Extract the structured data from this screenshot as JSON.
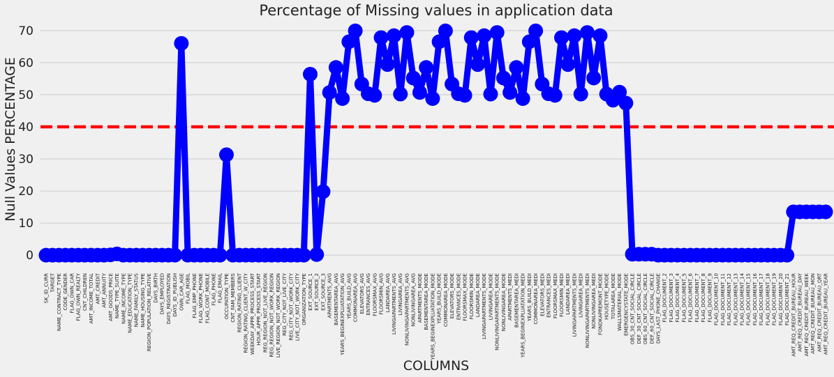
{
  "chart_data": {
    "type": "line",
    "title": "Percentage of Missing values in application data",
    "xlabel": "COLUMNS",
    "ylabel": "Null Values PERCENTAGE",
    "ylim": [
      -3,
      73
    ],
    "yticks": [
      0,
      10,
      20,
      30,
      40,
      50,
      60,
      70
    ],
    "grid": true,
    "threshold": 40,
    "colors": {
      "series": "#0000ff",
      "threshold": "#ff0000",
      "background": "#f0f0f0"
    },
    "categories": [
      "SK_ID_CURR",
      "TARGET",
      "NAME_CONTRACT_TYPE",
      "CODE_GENDER",
      "FLAG_OWN_CAR",
      "FLAG_OWN_REALTY",
      "CNT_CHILDREN",
      "AMT_INCOME_TOTAL",
      "AMT_CREDIT",
      "AMT_ANNUITY",
      "AMT_GOODS_PRICE",
      "NAME_TYPE_SUITE",
      "NAME_INCOME_TYPE",
      "NAME_EDUCATION_TYPE",
      "NAME_FAMILY_STATUS",
      "NAME_HOUSING_TYPE",
      "REGION_POPULATION_RELATIVE",
      "DAYS_BIRTH",
      "DAYS_EMPLOYED",
      "DAYS_REGISTRATION",
      "DAYS_ID_PUBLISH",
      "OWN_CAR_AGE",
      "FLAG_MOBIL",
      "FLAG_EMP_PHONE",
      "FLAG_WORK_PHONE",
      "FLAG_CONT_MOBILE",
      "FLAG_PHONE",
      "FLAG_EMAIL",
      "OCCUPATION_TYPE",
      "CNT_FAM_MEMBERS",
      "REGION_RATING_CLIENT",
      "REGION_RATING_CLIENT_W_CITY",
      "WEEKDAY_APPR_PROCESS_START",
      "HOUR_APPR_PROCESS_START",
      "REG_REGION_NOT_LIVE_REGION",
      "REG_REGION_NOT_WORK_REGION",
      "LIVE_REGION_NOT_WORK_REGION",
      "REG_CITY_NOT_LIVE_CITY",
      "REG_CITY_NOT_WORK_CITY",
      "LIVE_CITY_NOT_WORK_CITY",
      "ORGANIZATION_TYPE",
      "EXT_SOURCE_1",
      "EXT_SOURCE_2",
      "EXT_SOURCE_3",
      "APARTMENTS_AVG",
      "BASEMENTAREA_AVG",
      "YEARS_BEGINEXPLUATATION_AVG",
      "YEARS_BUILD_AVG",
      "COMMONAREA_AVG",
      "ELEVATORS_AVG",
      "ENTRANCES_AVG",
      "FLOORSMAX_AVG",
      "FLOORSMIN_AVG",
      "LANDAREA_AVG",
      "LIVINGAPARTMENTS_AVG",
      "LIVINGAREA_AVG",
      "NONLIVINGAPARTMENTS_AVG",
      "NONLIVINGAREA_AVG",
      "APARTMENTS_MODE",
      "BASEMENTAREA_MODE",
      "YEARS_BEGINEXPLUATATION_MODE",
      "YEARS_BUILD_MODE",
      "COMMONAREA_MODE",
      "ELEVATORS_MODE",
      "ENTRANCES_MODE",
      "FLOORSMAX_MODE",
      "FLOORSMIN_MODE",
      "LANDAREA_MODE",
      "LIVINGAPARTMENTS_MODE",
      "LIVINGAREA_MODE",
      "NONLIVINGAPARTMENTS_MODE",
      "NONLIVINGAREA_MODE",
      "APARTMENTS_MEDI",
      "BASEMENTAREA_MEDI",
      "YEARS_BEGINEXPLUATATION_MEDI",
      "YEARS_BUILD_MEDI",
      "COMMONAREA_MEDI",
      "ELEVATORS_MEDI",
      "ENTRANCES_MEDI",
      "FLOORSMAX_MEDI",
      "FLOORSMIN_MEDI",
      "LANDAREA_MEDI",
      "LIVINGAPARTMENTS_MEDI",
      "LIVINGAREA_MEDI",
      "NONLIVINGAPARTMENTS_MEDI",
      "NONLIVINGAREA_MEDI",
      "FONDKAPREMONT_MODE",
      "HOUSETYPE_MODE",
      "TOTALAREA_MODE",
      "WALLSMATERIAL_MODE",
      "EMERGENCYSTATE_MODE",
      "OBS_30_CNT_SOCIAL_CIRCLE",
      "DEF_30_CNT_SOCIAL_CIRCLE",
      "OBS_60_CNT_SOCIAL_CIRCLE",
      "DEF_60_CNT_SOCIAL_CIRCLE",
      "DAYS_LAST_PHONE_CHANGE",
      "FLAG_DOCUMENT_2",
      "FLAG_DOCUMENT_3",
      "FLAG_DOCUMENT_4",
      "FLAG_DOCUMENT_5",
      "FLAG_DOCUMENT_6",
      "FLAG_DOCUMENT_7",
      "FLAG_DOCUMENT_8",
      "FLAG_DOCUMENT_9",
      "FLAG_DOCUMENT_10",
      "FLAG_DOCUMENT_11",
      "FLAG_DOCUMENT_12",
      "FLAG_DOCUMENT_13",
      "FLAG_DOCUMENT_14",
      "FLAG_DOCUMENT_15",
      "FLAG_DOCUMENT_16",
      "FLAG_DOCUMENT_17",
      "FLAG_DOCUMENT_18",
      "FLAG_DOCUMENT_19",
      "FLAG_DOCUMENT_20",
      "FLAG_DOCUMENT_21",
      "AMT_REQ_CREDIT_BUREAU_HOUR",
      "AMT_REQ_CREDIT_BUREAU_DAY",
      "AMT_REQ_CREDIT_BUREAU_WEEK",
      "AMT_REQ_CREDIT_BUREAU_MON",
      "AMT_REQ_CREDIT_BUREAU_QRT",
      "AMT_REQ_CREDIT_BUREAU_YEAR"
    ],
    "values": [
      0,
      0,
      0,
      0,
      0,
      0,
      0,
      0,
      0,
      0,
      0.1,
      0.4,
      0,
      0,
      0,
      0,
      0,
      0,
      0,
      0,
      0,
      66,
      0,
      0,
      0,
      0,
      0,
      0,
      31.3,
      0,
      0,
      0,
      0,
      0,
      0,
      0,
      0,
      0,
      0,
      0,
      0,
      56.4,
      0.2,
      19.8,
      50.7,
      58.5,
      48.8,
      66.5,
      69.9,
      53.3,
      50.3,
      49.8,
      67.8,
      59.4,
      68.4,
      50.2,
      69.4,
      55.2,
      50.7,
      58.5,
      48.8,
      66.5,
      69.9,
      53.3,
      50.3,
      49.8,
      67.8,
      59.4,
      68.4,
      50.2,
      69.4,
      55.2,
      50.7,
      58.5,
      48.8,
      66.5,
      69.9,
      53.3,
      50.3,
      49.8,
      67.8,
      59.4,
      68.4,
      50.2,
      69.4,
      55.2,
      68.4,
      50.2,
      48.3,
      50.8,
      47.4,
      0.3,
      0.3,
      0.3,
      0.3,
      0,
      0,
      0,
      0,
      0,
      0,
      0,
      0,
      0,
      0,
      0,
      0,
      0,
      0,
      0,
      0,
      0,
      0,
      0,
      0,
      0,
      13.5,
      13.5,
      13.5,
      13.5,
      13.5,
      13.5
    ]
  }
}
